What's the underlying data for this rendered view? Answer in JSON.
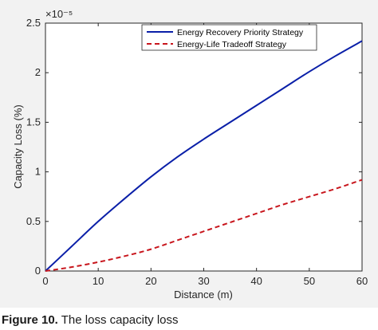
{
  "chart_data": {
    "type": "line",
    "xlabel": "Distance (m)",
    "ylabel": "Capacity Loss (%)",
    "y_multiplier": "×10⁻⁵",
    "xlim": [
      0,
      60
    ],
    "ylim": [
      0,
      2.5
    ],
    "x_ticks": [
      0,
      10,
      20,
      30,
      40,
      50,
      60
    ],
    "y_ticks": [
      0,
      0.5,
      1,
      1.5,
      2,
      2.5
    ],
    "grid": false,
    "legend_position": "top-right",
    "series": [
      {
        "name": "Energy Recovery Priority Strategy",
        "color": "#0a1fa8",
        "style": "solid",
        "x": [
          0,
          5,
          10,
          15,
          20,
          25,
          30,
          35,
          40,
          45,
          50,
          55,
          60
        ],
        "y": [
          0,
          0.25,
          0.5,
          0.73,
          0.95,
          1.15,
          1.33,
          1.5,
          1.67,
          1.84,
          2.01,
          2.17,
          2.32
        ]
      },
      {
        "name": "Energy-Life Tradeoff Strategy",
        "color": "#c8161d",
        "style": "dashed",
        "x": [
          0,
          5,
          10,
          15,
          20,
          25,
          30,
          35,
          40,
          45,
          50,
          55,
          60
        ],
        "y": [
          0,
          0.04,
          0.09,
          0.15,
          0.22,
          0.31,
          0.4,
          0.49,
          0.58,
          0.67,
          0.75,
          0.83,
          0.92
        ]
      }
    ]
  },
  "caption": {
    "label": "Figure 10.",
    "text": "The loss capacity loss"
  }
}
